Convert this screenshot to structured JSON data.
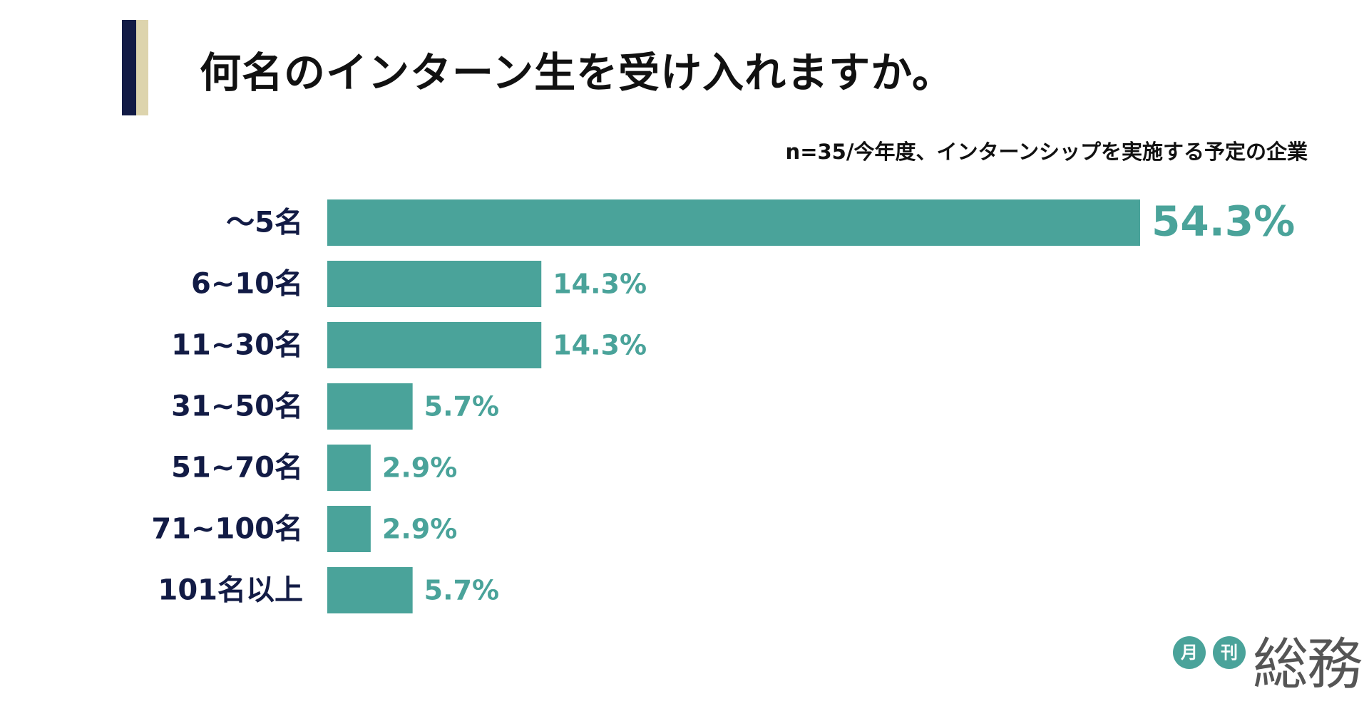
{
  "header": {
    "title": "何名のインターン生を受け入れますか。",
    "note": "n=35/今年度、インターンシップを実施する予定の企業",
    "accent_colors": [
      "#121b45",
      "#ddd4ad"
    ]
  },
  "chart_data": {
    "type": "bar",
    "orientation": "horizontal",
    "categories": [
      "～5名",
      "6~10名",
      "11~30名",
      "31~50名",
      "51~70名",
      "71~100名",
      "101名以上"
    ],
    "values": [
      54.3,
      14.3,
      14.3,
      5.7,
      2.9,
      2.9,
      5.7
    ],
    "value_labels": [
      "54.3%",
      "14.3%",
      "14.3%",
      "5.7%",
      "2.9%",
      "2.9%",
      "5.7%"
    ],
    "xlim": [
      0,
      54.3
    ],
    "grid": false,
    "bar_color": "#4aa39a",
    "label_color": "#121b45"
  },
  "logo": {
    "circle1": "月",
    "circle2": "刊",
    "text": "総務",
    "color": "#4aa39a"
  }
}
